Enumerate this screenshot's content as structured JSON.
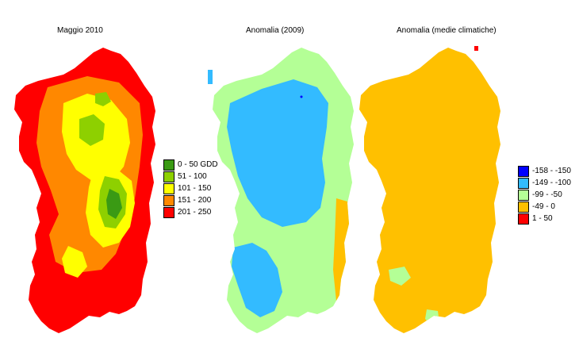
{
  "maps": [
    {
      "title": "Maggio 2010",
      "legend": [
        {
          "label": "0 - 50 GDD",
          "color": "#3a9a14"
        },
        {
          "label": "51 - 100",
          "color": "#8ed000"
        },
        {
          "label": "101 - 150",
          "color": "#ffff00"
        },
        {
          "label": "151 - 200",
          "color": "#ff8800"
        },
        {
          "label": "201 - 250",
          "color": "#ff0000"
        }
      ]
    },
    {
      "title": "Anomalia (2009)"
    },
    {
      "title": "Anomalia (medie climatiche)",
      "legend": [
        {
          "label": "-158 - -150",
          "color": "#0000ff"
        },
        {
          "label": "-149 - -100",
          "color": "#33bbff"
        },
        {
          "label": "-99 - -50",
          "color": "#b4ff96"
        },
        {
          "label": "-49 - 0",
          "color": "#ffc000"
        },
        {
          "label": "1 - 50",
          "color": "#ff0000"
        }
      ]
    }
  ]
}
